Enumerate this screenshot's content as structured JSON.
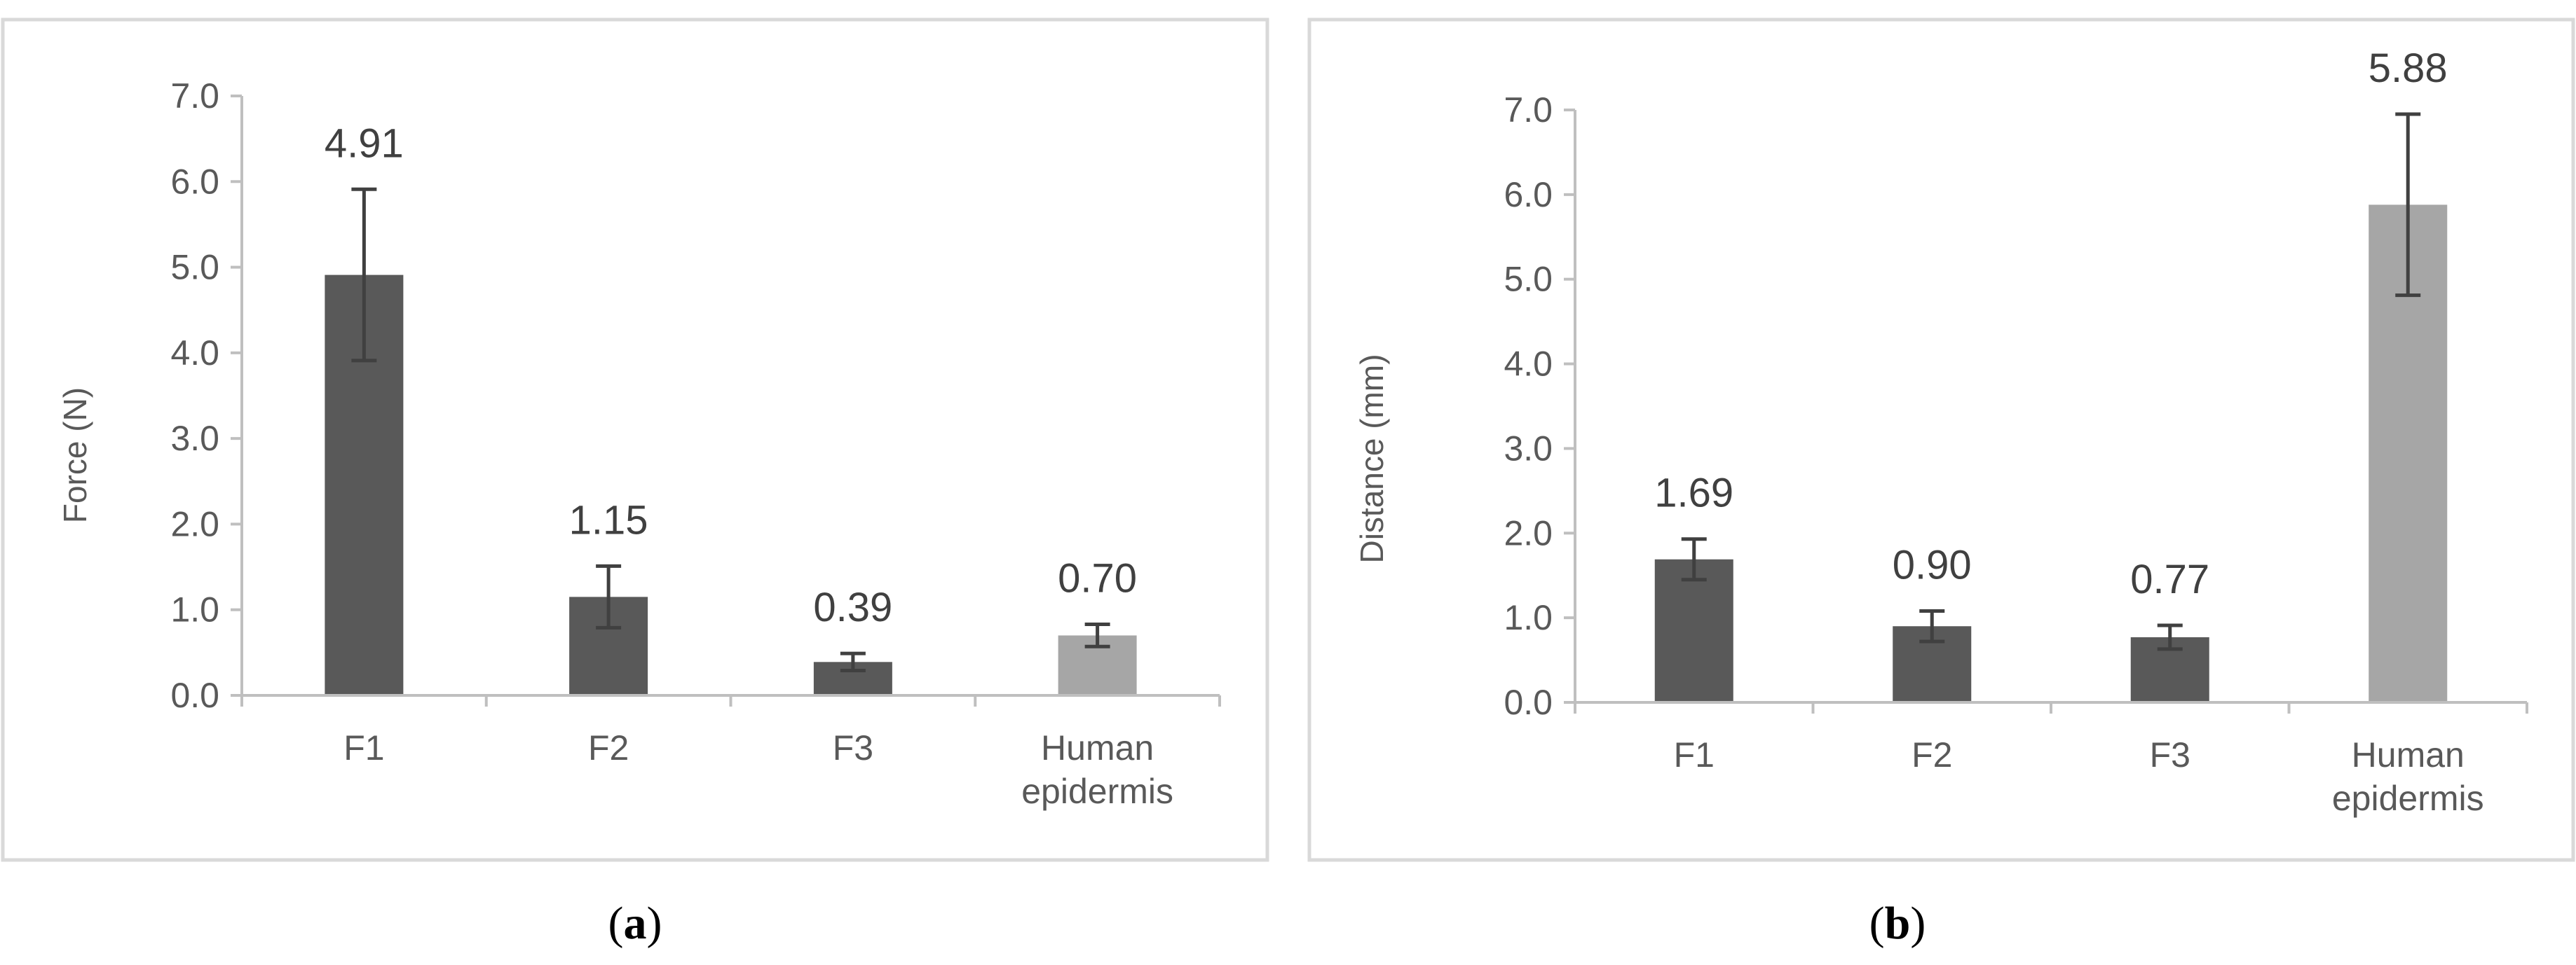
{
  "colors": {
    "bar_dark": "#595959",
    "bar_light": "#a6a6a6",
    "error_bar": "#404040",
    "axis": "#bfbfbf",
    "text": "#595959",
    "frame": "#d9d9d9"
  },
  "chart_data": [
    {
      "type": "bar",
      "panel_label": "a",
      "categories": [
        "F1",
        "F2",
        "F3",
        "Human\nepidermis"
      ],
      "values": [
        4.91,
        1.15,
        0.39,
        0.7
      ],
      "value_labels": [
        "4.91",
        "1.15",
        "0.39",
        "0.70"
      ],
      "error": [
        1.0,
        0.36,
        0.1,
        0.13
      ],
      "bar_colors": [
        "#595959",
        "#595959",
        "#595959",
        "#a6a6a6"
      ],
      "title": "",
      "xlabel": "",
      "ylabel": "Force (N)",
      "ylim": [
        0,
        7
      ],
      "yticks": [
        "0.0",
        "1.0",
        "2.0",
        "3.0",
        "4.0",
        "5.0",
        "6.0",
        "7.0"
      ],
      "grid": false
    },
    {
      "type": "bar",
      "panel_label": "b",
      "categories": [
        "F1",
        "F2",
        "F3",
        "Human\nepidermis"
      ],
      "values": [
        1.69,
        0.9,
        0.77,
        5.88
      ],
      "value_labels": [
        "1.69",
        "0.90",
        "0.77",
        "5.88"
      ],
      "error": [
        0.24,
        0.18,
        0.14,
        1.07
      ],
      "bar_colors": [
        "#595959",
        "#595959",
        "#595959",
        "#a6a6a6"
      ],
      "title": "",
      "xlabel": "",
      "ylabel": "Distance (mm)",
      "ylim": [
        0,
        7
      ],
      "yticks": [
        "0.0",
        "1.0",
        "2.0",
        "3.0",
        "4.0",
        "5.0",
        "6.0",
        "7.0"
      ],
      "grid": false
    }
  ]
}
